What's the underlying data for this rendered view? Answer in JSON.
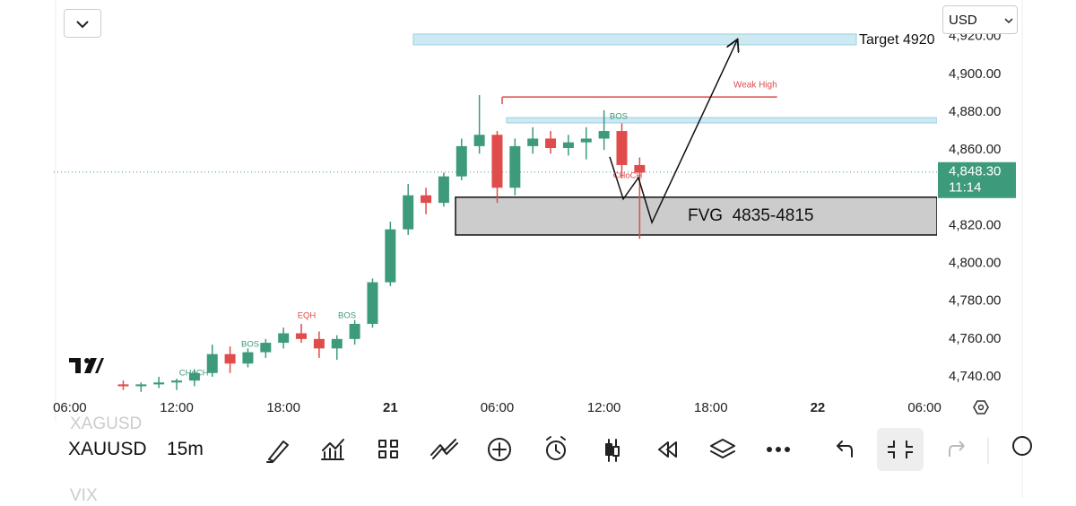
{
  "ui": {
    "currency": "USD",
    "symbol": "XAUUSD",
    "interval": "15m",
    "symbol_above": "XAGUSD",
    "symbol_below": "VIX"
  },
  "chart_data": {
    "type": "candlestick",
    "x": [
      9,
      10,
      11,
      12,
      13,
      14,
      15,
      16,
      17,
      18,
      19,
      20,
      21,
      22,
      23,
      24,
      25,
      26,
      27,
      28,
      29,
      30,
      31,
      32,
      33,
      34,
      35,
      36,
      37,
      38
    ],
    "open": [
      4736,
      4735,
      4736,
      4737,
      4738,
      4742,
      4752,
      4747,
      4753,
      4758,
      4763,
      4760,
      4755,
      4760,
      4768,
      4790,
      4818,
      4836,
      4832,
      4846,
      4862,
      4868,
      4840,
      4862,
      4866,
      4861,
      4864,
      4866,
      4870,
      4852
    ],
    "high": [
      4738,
      4737,
      4740,
      4739,
      4744,
      4757,
      4756,
      4755,
      4760,
      4766,
      4768,
      4764,
      4762,
      4770,
      4792,
      4822,
      4842,
      4840,
      4848,
      4866,
      4889,
      4870,
      4866,
      4872,
      4870,
      4868,
      4872,
      4881,
      4874,
      4856
    ],
    "low": [
      4733,
      4732,
      4734,
      4733,
      4735,
      4740,
      4742,
      4745,
      4750,
      4755,
      4758,
      4750,
      4749,
      4757,
      4766,
      4788,
      4815,
      4826,
      4830,
      4844,
      4858,
      4832,
      4836,
      4858,
      4858,
      4857,
      4855,
      4860,
      4845,
      4813
    ],
    "close": [
      4735,
      4736,
      4737,
      4738,
      4742,
      4752,
      4747,
      4753,
      4758,
      4763,
      4760,
      4755,
      4760,
      4768,
      4790,
      4818,
      4836,
      4832,
      4846,
      4862,
      4868,
      4840,
      4862,
      4866,
      4861,
      4864,
      4866,
      4870,
      4852,
      4848
    ],
    "up_color": "#3d9a7a",
    "down_color": "#e04b4b",
    "xlim": [
      5.1,
      54.7
    ],
    "ylim": [
      4730.5,
      4939.3
    ],
    "xticks": [
      {
        "value": 6,
        "label": "06:00"
      },
      {
        "value": 12,
        "label": "12:00"
      },
      {
        "value": 18,
        "label": "18:00"
      },
      {
        "value": 24,
        "label": "21"
      },
      {
        "value": 30,
        "label": "06:00"
      },
      {
        "value": 36,
        "label": "12:00"
      },
      {
        "value": 42,
        "label": "18:00"
      },
      {
        "value": 48,
        "label": "22"
      },
      {
        "value": 54,
        "label": "06:00"
      }
    ],
    "yticks": [
      {
        "value": 4740,
        "label": "4,740.00"
      },
      {
        "value": 4760,
        "label": "4,760.00"
      },
      {
        "value": 4780,
        "label": "4,780.00"
      },
      {
        "value": 4800,
        "label": "4,800.00"
      },
      {
        "value": 4820,
        "label": "4,820.00"
      },
      {
        "value": 4840,
        "label": "4,840.00"
      },
      {
        "value": 4860,
        "label": "4,860.00"
      },
      {
        "value": 4880,
        "label": "4,880.00"
      },
      {
        "value": 4900,
        "label": "4,900.00"
      },
      {
        "value": 4920,
        "label": "4,920.00"
      }
    ],
    "last_price": {
      "value": 4848.3,
      "label": "4,848.30",
      "countdown": "11:14",
      "color": "#3d9a7a"
    },
    "zones": [
      {
        "label": "Target 4920",
        "x": [
          25.29,
          50.17
        ],
        "y": [
          4915.6,
          4921.3
        ],
        "color": "#cde9f1"
      },
      {
        "label": "FVG  4835-4815",
        "x": [
          27.66,
          54.7
        ],
        "y": [
          4815,
          4835
        ],
        "color": "#cccccc"
      }
    ],
    "bos_zone": {
      "x": [
        30.53,
        54.7
      ],
      "y": [
        4874.3,
        4877.1
      ],
      "color": "#cde9f1"
    },
    "weak_high": {
      "label": "Weak High",
      "value": 4888,
      "x": [
        30.28,
        45.72
      ],
      "color": "#e04b4b"
    },
    "projection": {
      "x": [
        36.32,
        37.08,
        37.93,
        38.69,
        43.47
      ],
      "y": [
        4856.3,
        4834,
        4845.3,
        4821.6,
        4917.9
      ]
    },
    "annotations": [
      {
        "text": "CHoCH",
        "x": 12.96,
        "y": 4741.9,
        "color": "#3d9a7a"
      },
      {
        "text": "BOS",
        "x": 16.13,
        "y": 4757.1,
        "color": "#3d9a7a"
      },
      {
        "text": "EQH",
        "x": 19.3,
        "y": 4772.3,
        "color": "#e04b4b"
      },
      {
        "text": "BOS",
        "x": 21.57,
        "y": 4772.3,
        "color": "#3d9a7a"
      },
      {
        "text": "BOS",
        "x": 36.82,
        "y": 4877.6,
        "color": "#3d9a7a"
      },
      {
        "text": "CHoCH",
        "x": 37.33,
        "y": 4846.3,
        "color": "#e04b4b"
      }
    ]
  }
}
